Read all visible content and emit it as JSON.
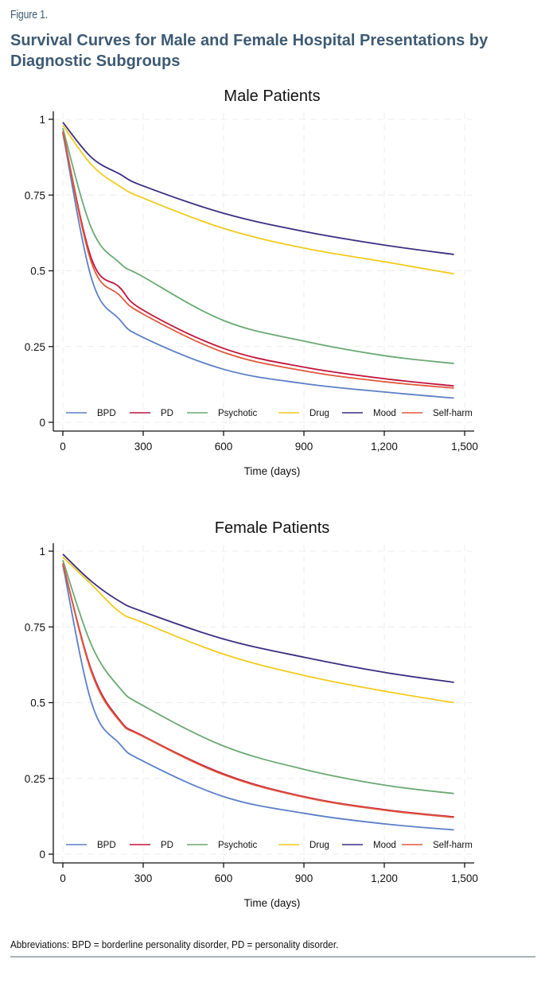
{
  "figure_label": "Figure 1.",
  "figure_title": "Survival Curves for Male and Female Hospital Presentations by Diagnostic Subgroups",
  "footnote": "Abbreviations: BPD = borderline personality disorder, PD = personality disorder.",
  "chart_data": [
    {
      "type": "line",
      "title": "Male Patients",
      "xlabel": "Time (days)",
      "ylabel": "",
      "xlim": [
        0,
        1500
      ],
      "ylim": [
        0,
        1
      ],
      "xticks": [
        0,
        300,
        600,
        900,
        1200,
        1500
      ],
      "xtick_labels": [
        "0",
        "300",
        "600",
        "900",
        "1,200",
        "1,500"
      ],
      "yticks": [
        0,
        0.25,
        0.5,
        0.75,
        1
      ],
      "ytick_labels": [
        "0",
        "0.25",
        "0.5",
        "0.75",
        "1"
      ],
      "grid": true,
      "legend_position": "bottom-inside",
      "x": [
        0,
        107,
        211,
        300,
        600,
        900,
        1200,
        1460
      ],
      "series": [
        {
          "name": "BPD",
          "color": "#5b7fc7",
          "values": [
            0.955,
            0.475,
            0.34,
            0.28,
            0.175,
            0.128,
            0.1,
            0.08
          ]
        },
        {
          "name": "PD",
          "color": "#c0143c",
          "values": [
            0.96,
            0.54,
            0.446,
            0.37,
            0.244,
            0.182,
            0.144,
            0.12
          ]
        },
        {
          "name": "Psychotic",
          "color": "#6aaa72",
          "values": [
            0.97,
            0.64,
            0.527,
            0.48,
            0.336,
            0.268,
            0.22,
            0.194
          ]
        },
        {
          "name": "Drug",
          "color": "#f2cb1d",
          "values": [
            0.98,
            0.85,
            0.78,
            0.74,
            0.64,
            0.575,
            0.53,
            0.49
          ]
        },
        {
          "name": "Mood",
          "color": "#3b2e80",
          "values": [
            0.99,
            0.874,
            0.82,
            0.78,
            0.69,
            0.63,
            0.585,
            0.554
          ]
        },
        {
          "name": "Self-harm",
          "color": "#e0583a",
          "values": [
            0.96,
            0.527,
            0.42,
            0.357,
            0.231,
            0.17,
            0.134,
            0.113
          ]
        }
      ]
    },
    {
      "type": "line",
      "title": "Female Patients",
      "xlabel": "Time (days)",
      "ylabel": "",
      "xlim": [
        0,
        1500
      ],
      "ylim": [
        0,
        1
      ],
      "xticks": [
        0,
        300,
        600,
        900,
        1200,
        1500
      ],
      "xtick_labels": [
        "0",
        "300",
        "600",
        "900",
        "1,200",
        "1,500"
      ],
      "yticks": [
        0,
        0.25,
        0.5,
        0.75,
        1
      ],
      "ytick_labels": [
        "0",
        "0.25",
        "0.5",
        "0.75",
        "1"
      ],
      "grid": true,
      "legend_position": "bottom-inside",
      "x": [
        0,
        107,
        211,
        300,
        600,
        900,
        1200,
        1460
      ],
      "series": [
        {
          "name": "BPD",
          "color": "#5b7fc7",
          "values": [
            0.955,
            0.5,
            0.365,
            0.307,
            0.19,
            0.135,
            0.1,
            0.08
          ]
        },
        {
          "name": "PD",
          "color": "#c0143c",
          "values": [
            0.96,
            0.606,
            0.444,
            0.39,
            0.265,
            0.19,
            0.147,
            0.123
          ]
        },
        {
          "name": "Psychotic",
          "color": "#6aaa72",
          "values": [
            0.97,
            0.69,
            0.55,
            0.49,
            0.357,
            0.28,
            0.228,
            0.2
          ]
        },
        {
          "name": "Drug",
          "color": "#f2cb1d",
          "values": [
            0.98,
            0.89,
            0.8,
            0.764,
            0.66,
            0.59,
            0.538,
            0.5
          ]
        },
        {
          "name": "Mood",
          "color": "#3b2e80",
          "values": [
            0.99,
            0.9,
            0.835,
            0.8,
            0.71,
            0.65,
            0.6,
            0.567
          ]
        },
        {
          "name": "Self-harm",
          "color": "#e0583a",
          "values": [
            0.96,
            0.6,
            0.44,
            0.388,
            0.262,
            0.188,
            0.145,
            0.121
          ]
        }
      ]
    }
  ]
}
